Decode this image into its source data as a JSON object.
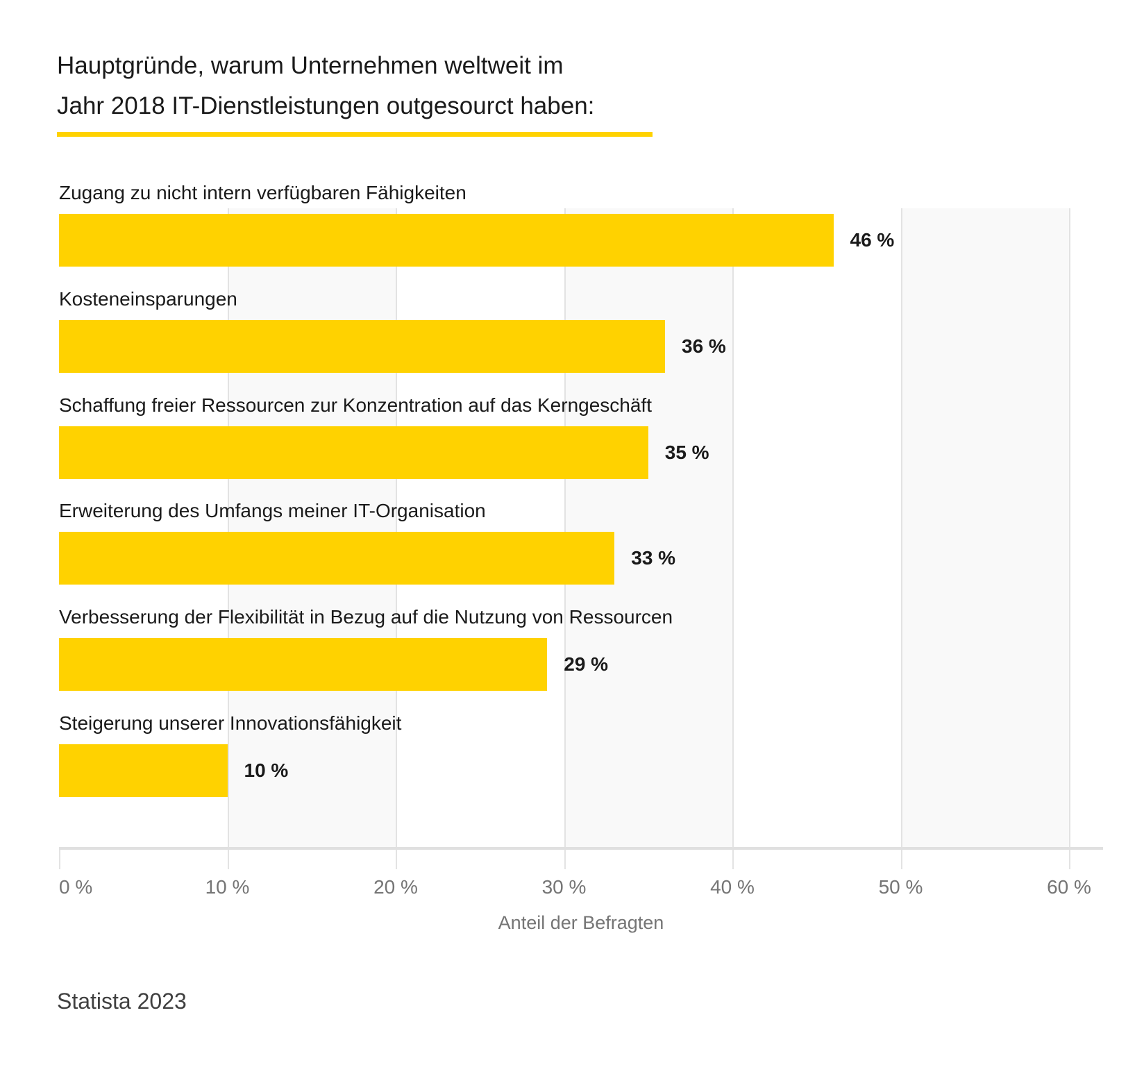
{
  "title": {
    "line1": "Hauptgründe, warum Unternehmen weltweit im",
    "line2": "Jahr 2018 IT-Dienstleistungen outgesourct haben:"
  },
  "chart_data": {
    "type": "bar",
    "orientation": "horizontal",
    "categories": [
      "Zugang zu nicht intern verfügbaren Fähigkeiten",
      "Kosteneinsparungen",
      "Schaffung freier Ressourcen zur Konzentration auf das Kerngeschäft",
      "Erweiterung des Umfangs meiner IT-Organisation",
      "Verbesserung der Flexibilität in Bezug auf die Nutzung von Ressourcen",
      "Steigerung unserer Innovationsfähigkeit"
    ],
    "values": [
      46,
      36,
      35,
      33,
      29,
      10
    ],
    "value_labels": [
      "46 %",
      "36 %",
      "35 %",
      "33 %",
      "29 %",
      "10 %"
    ],
    "xlabel": "Anteil der Befragten",
    "x_ticks": [
      0,
      10,
      20,
      30,
      40,
      50,
      60
    ],
    "x_tick_labels": [
      "0 %",
      "10 %",
      "20 %",
      "30 %",
      "40 %",
      "50 %",
      "60 %"
    ],
    "xlim": [
      0,
      60
    ],
    "grid": true,
    "legend": false,
    "colors": {
      "bar": "#ffd200",
      "accent_rule": "#ffd200",
      "band": "#f9f9f9",
      "gridline": "#e3e3e3",
      "axis_line": "#e0e0e0",
      "tick_text": "#757575",
      "label_text": "#1a1a1a"
    }
  },
  "footer": {
    "source": "Statista 2023"
  }
}
